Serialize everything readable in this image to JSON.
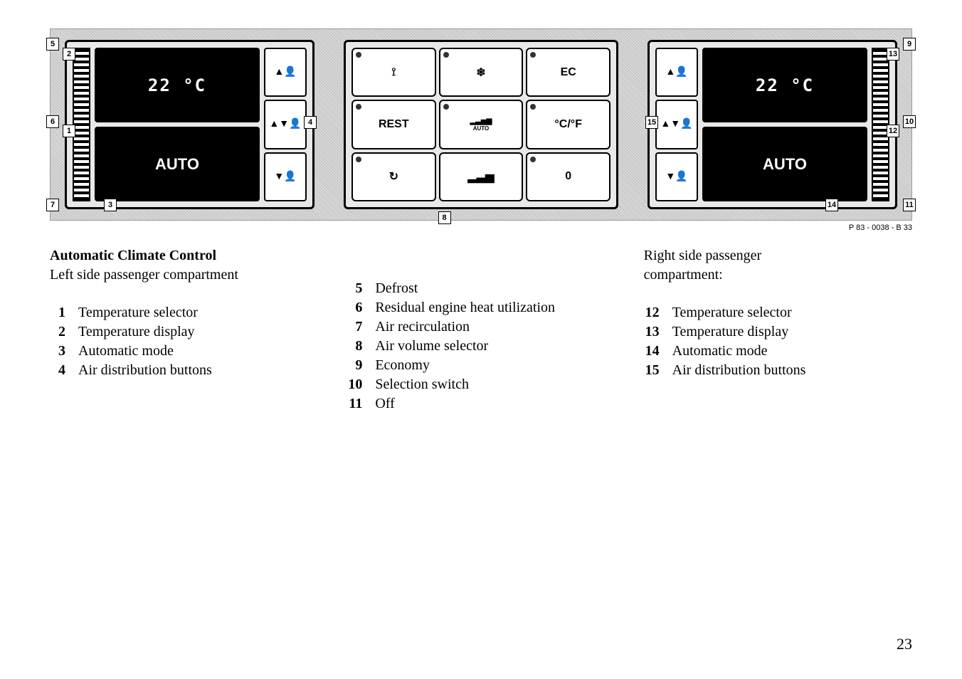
{
  "diagram": {
    "left_temp": "22 °C",
    "right_temp": "22 °C",
    "auto_label": "AUTO",
    "center_buttons": {
      "defrost": "⟟",
      "ac": "❄",
      "ec": "EC",
      "rest": "REST",
      "volume": "▂▃▅▆",
      "cf": "°C/°F",
      "recirc": "↻",
      "auto": "AUTO",
      "off": "0"
    },
    "callouts": [
      "1",
      "2",
      "3",
      "4",
      "5",
      "6",
      "7",
      "8",
      "9",
      "10",
      "11",
      "12",
      "13",
      "14",
      "15"
    ],
    "caption": "P 83 - 0038 - B 33"
  },
  "legend": {
    "left": {
      "title_bold": "Automatic Climate Control",
      "title_sub": "Left side passenger compartment",
      "items": [
        {
          "n": "1",
          "t": "Temperature selector"
        },
        {
          "n": "2",
          "t": "Temperature display"
        },
        {
          "n": "3",
          "t": "Automatic mode"
        },
        {
          "n": "4",
          "t": "Air distribution buttons"
        }
      ]
    },
    "center": {
      "items": [
        {
          "n": "5",
          "t": "Defrost"
        },
        {
          "n": "6",
          "t": "Residual engine heat utilization"
        },
        {
          "n": "7",
          "t": "Air recirculation"
        },
        {
          "n": "8",
          "t": "Air volume selector"
        },
        {
          "n": "9",
          "t": "Economy"
        },
        {
          "n": "10",
          "t": "Selection switch"
        },
        {
          "n": "11",
          "t": "Off"
        }
      ]
    },
    "right": {
      "title_sub1": "Right side passenger",
      "title_sub2": "compartment:",
      "items": [
        {
          "n": "12",
          "t": "Temperature selector"
        },
        {
          "n": "13",
          "t": "Temperature display"
        },
        {
          "n": "14",
          "t": "Automatic mode"
        },
        {
          "n": "15",
          "t": "Air distribution buttons"
        }
      ]
    }
  },
  "page_number": "23"
}
